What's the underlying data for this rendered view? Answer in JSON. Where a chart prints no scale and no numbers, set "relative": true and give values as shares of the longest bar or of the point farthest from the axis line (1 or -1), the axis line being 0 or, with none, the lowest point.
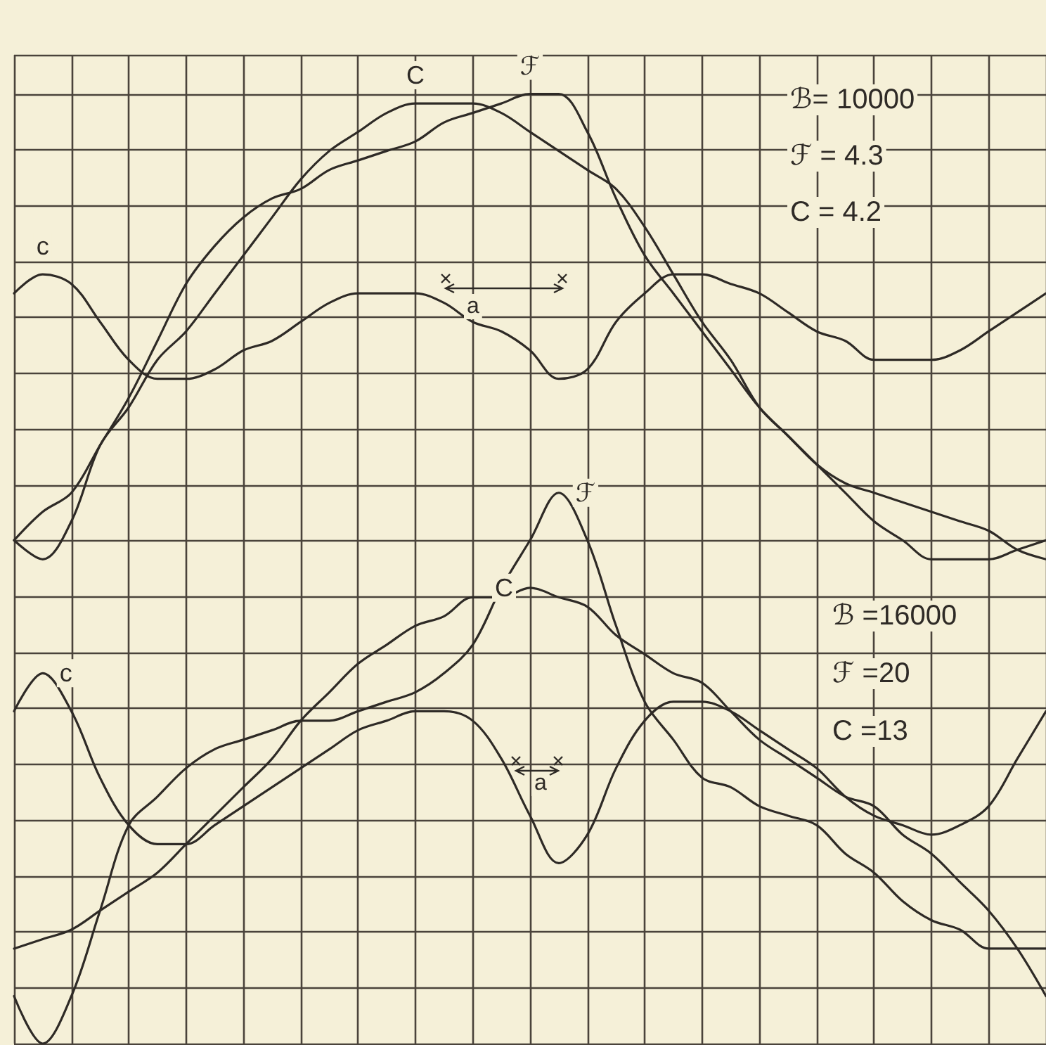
{
  "chart_data": {
    "type": "line",
    "relative": true,
    "grid": true,
    "categories": [
      null,
      null,
      null,
      null,
      null,
      null,
      null,
      null,
      null,
      null,
      null,
      null,
      null,
      null,
      null,
      null,
      null,
      null,
      null,
      null,
      null,
      null,
      null,
      null,
      null,
      null,
      null,
      null,
      null,
      null,
      null,
      null,
      null,
      null,
      null,
      null,
      null
    ],
    "series": [
      {
        "name": "ℱ",
        "color": "#2e2a26",
        "values": [
          0.53,
          0.56,
          0.58,
          0.63,
          0.68,
          0.74,
          0.8,
          0.84,
          0.87,
          0.89,
          0.9,
          0.92,
          0.93,
          0.94,
          0.95,
          0.97,
          0.98,
          0.99,
          1.0,
          1.0,
          0.96,
          0.89,
          0.83,
          0.79,
          0.75,
          0.71,
          0.67,
          0.64,
          0.61,
          0.58,
          0.55,
          0.53,
          0.51,
          0.51,
          0.51,
          0.52,
          0.53
        ]
      },
      {
        "name": "C",
        "color": "#2e2a26",
        "values": [
          0.53,
          0.51,
          0.55,
          0.63,
          0.67,
          0.72,
          0.75,
          0.79,
          0.83,
          0.87,
          0.91,
          0.94,
          0.96,
          0.98,
          0.99,
          0.99,
          0.99,
          0.98,
          0.96,
          0.94,
          0.92,
          0.9,
          0.86,
          0.81,
          0.76,
          0.72,
          0.67,
          0.64,
          0.61,
          0.59,
          0.58,
          0.57,
          0.56,
          0.55,
          0.54,
          0.52,
          0.51
        ]
      },
      {
        "name": "c",
        "color": "#2e2a26",
        "values": [
          0.79,
          0.81,
          0.8,
          0.76,
          0.72,
          0.7,
          0.7,
          0.71,
          0.73,
          0.74,
          0.76,
          0.78,
          0.79,
          0.79,
          0.79,
          0.78,
          0.76,
          0.75,
          0.73,
          0.7,
          0.71,
          0.76,
          0.79,
          0.81,
          0.81,
          0.8,
          0.79,
          0.77,
          0.75,
          0.74,
          0.72,
          0.72,
          0.72,
          0.73,
          0.75,
          0.77,
          0.79
        ]
      },
      {
        "name": "ℱ",
        "color": "#2e2a26",
        "values": [
          0.05,
          0.0,
          0.05,
          0.14,
          0.23,
          0.26,
          0.29,
          0.31,
          0.32,
          0.33,
          0.34,
          0.34,
          0.35,
          0.36,
          0.37,
          0.39,
          0.42,
          0.48,
          0.53,
          0.58,
          0.53,
          0.44,
          0.36,
          0.32,
          0.28,
          0.27,
          0.25,
          0.24,
          0.23,
          0.2,
          0.18,
          0.15,
          0.13,
          0.12,
          0.1,
          0.1,
          0.1
        ]
      },
      {
        "name": "C",
        "color": "#2e2a26",
        "values": [
          0.1,
          0.11,
          0.12,
          0.14,
          0.16,
          0.18,
          0.21,
          0.24,
          0.27,
          0.3,
          0.34,
          0.37,
          0.4,
          0.42,
          0.44,
          0.45,
          0.47,
          0.47,
          0.48,
          0.47,
          0.46,
          0.43,
          0.41,
          0.39,
          0.38,
          0.35,
          0.32,
          0.3,
          0.28,
          0.26,
          0.25,
          0.22,
          0.2,
          0.17,
          0.14,
          0.1,
          0.05
        ]
      },
      {
        "name": "c",
        "color": "#2e2a26",
        "values": [
          0.35,
          0.39,
          0.35,
          0.28,
          0.23,
          0.21,
          0.21,
          0.23,
          0.25,
          0.27,
          0.29,
          0.31,
          0.33,
          0.34,
          0.35,
          0.35,
          0.34,
          0.3,
          0.24,
          0.19,
          0.22,
          0.29,
          0.34,
          0.36,
          0.36,
          0.35,
          0.33,
          0.31,
          0.29,
          0.26,
          0.24,
          0.23,
          0.22,
          0.23,
          0.25,
          0.3,
          0.35
        ]
      }
    ],
    "annotations": [
      "ℬ= 10000",
      "ℱ = 4.3",
      "C = 4.2",
      "ℬ =16000",
      "ℱ =20",
      "C =13",
      "a",
      "a"
    ]
  }
}
